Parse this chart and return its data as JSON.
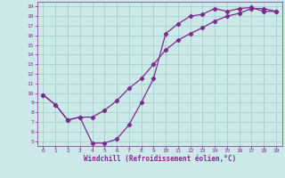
{
  "line1_x": [
    0,
    1,
    2,
    3,
    4,
    5,
    6,
    7,
    8,
    9,
    10,
    11,
    12,
    13,
    14,
    15,
    16,
    17,
    18,
    19
  ],
  "line1_y": [
    9.8,
    8.8,
    7.2,
    7.5,
    4.8,
    4.8,
    5.2,
    6.7,
    9.0,
    11.5,
    16.2,
    17.2,
    18.0,
    18.2,
    18.8,
    18.5,
    18.8,
    18.9,
    18.5,
    18.5
  ],
  "line2_x": [
    0,
    1,
    2,
    3,
    4,
    5,
    6,
    7,
    8,
    9,
    10,
    11,
    12,
    13,
    14,
    15,
    16,
    17,
    18,
    19
  ],
  "line2_y": [
    9.8,
    8.8,
    7.2,
    7.5,
    7.5,
    8.2,
    9.2,
    10.5,
    11.5,
    13.0,
    14.5,
    15.5,
    16.2,
    16.8,
    17.5,
    18.0,
    18.3,
    18.8,
    18.8,
    18.5
  ],
  "line_color": "#7b2d8b",
  "bg_color": "#cce8e8",
  "grid_color": "#99cccc",
  "xlabel": "Windchill (Refroidissement éolien,°C)",
  "xlabel_color": "#7b2d8b",
  "tick_color": "#7b2d8b",
  "spine_color": "#7b2d8b",
  "xlim": [
    -0.5,
    19.5
  ],
  "ylim": [
    4.5,
    19.5
  ],
  "xticks": [
    0,
    1,
    2,
    3,
    4,
    5,
    6,
    7,
    8,
    9,
    10,
    11,
    12,
    13,
    14,
    15,
    16,
    17,
    18,
    19
  ],
  "yticks": [
    5,
    6,
    7,
    8,
    9,
    10,
    11,
    12,
    13,
    14,
    15,
    16,
    17,
    18,
    19
  ],
  "marker": "D",
  "markersize": 2.2,
  "linewidth": 0.9
}
